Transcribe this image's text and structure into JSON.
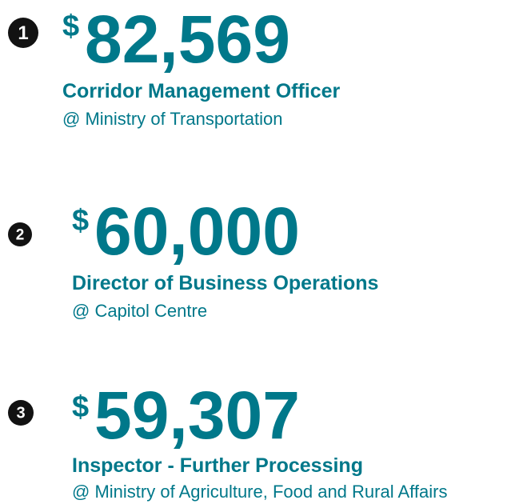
{
  "items": [
    {
      "rank": "1",
      "currency": "$",
      "amount": "82,569",
      "title": "Corridor Management Officer",
      "employer": "@ Ministry of Transportation"
    },
    {
      "rank": "2",
      "currency": "$",
      "amount": "60,000",
      "title": "Director of Business Operations",
      "employer": "@ Capitol Centre"
    },
    {
      "rank": "3",
      "currency": "$",
      "amount": "59,307",
      "title": "Inspector - Further Processing",
      "employer": "@ Ministry of Agriculture, Food and Rural Affairs"
    }
  ]
}
